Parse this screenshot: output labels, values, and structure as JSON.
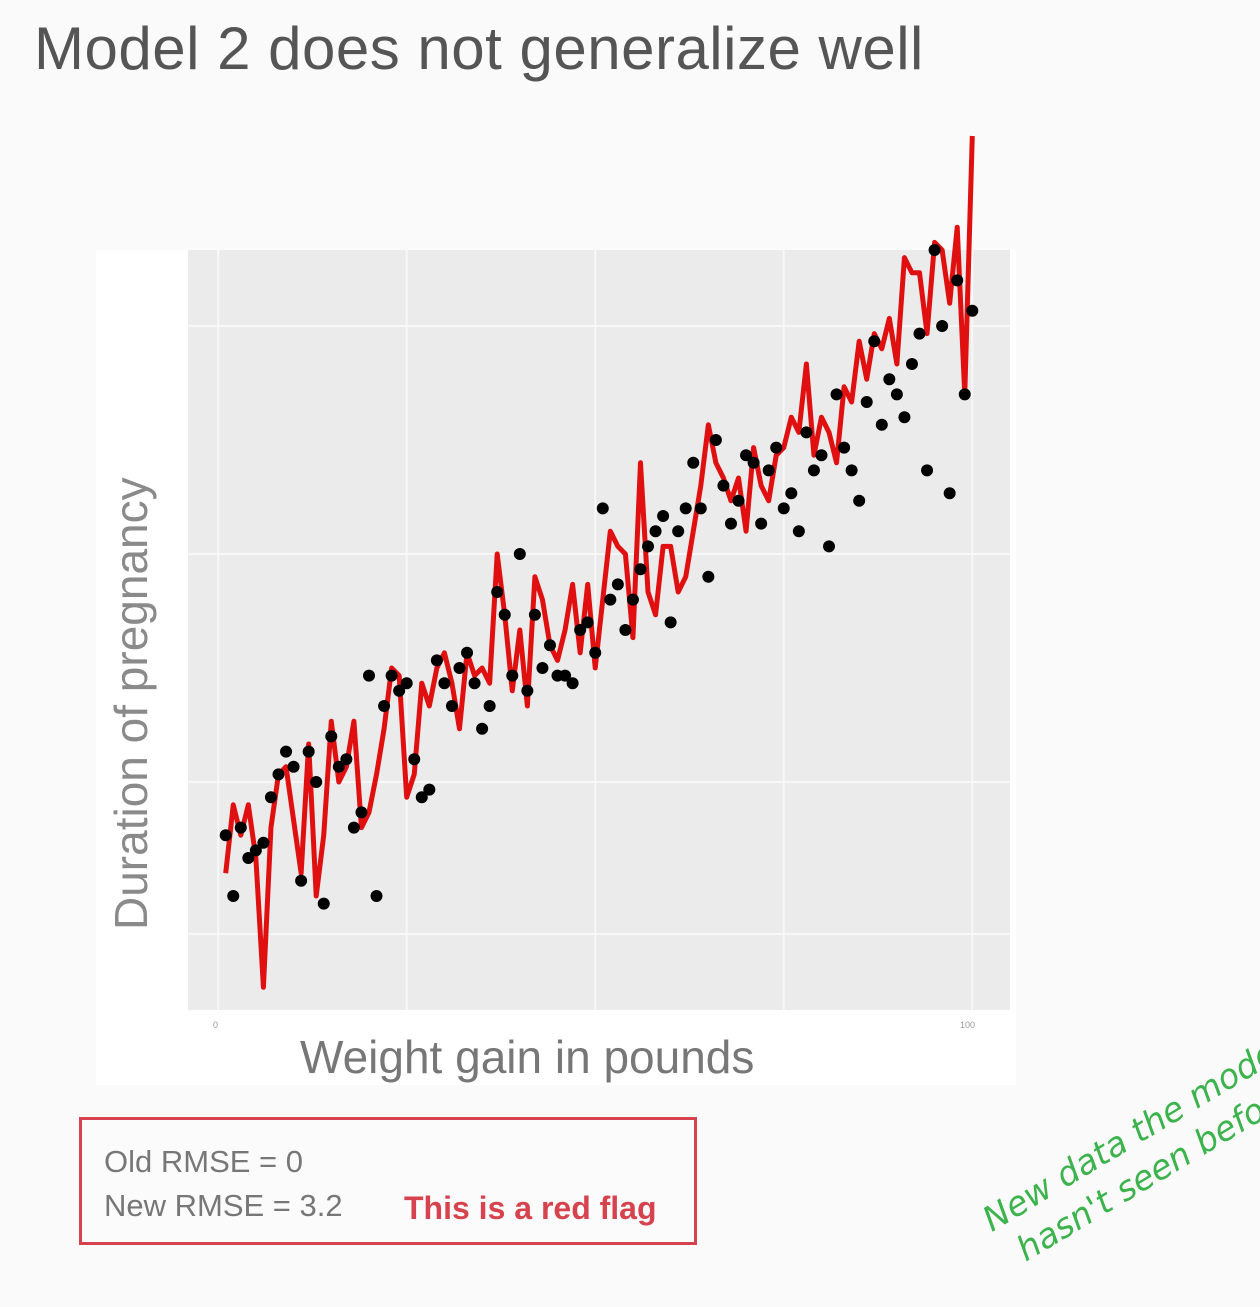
{
  "title": "Model 2 does not generalize well",
  "rmse": {
    "old": "Old RMSE = 0",
    "new": "New RMSE = 3.2",
    "flag": "This is a red flag"
  },
  "annotation": "New data the model\nhasn't seen before",
  "colors": {
    "model_line": "#e01010",
    "points": "#000000",
    "panel": "#ebebeb",
    "flag": "#d6434f",
    "annotation": "#3db34d"
  },
  "chart_data": {
    "type": "scatter",
    "xlabel": "Weight gain in pounds",
    "ylabel": "Duration of pregnancy",
    "x_ticks": [
      "0",
      "100"
    ],
    "xlim": [
      -4,
      105
    ],
    "ylim": [
      0,
      100
    ],
    "grid": true,
    "legend": "none",
    "series": [
      {
        "kind": "points",
        "x": [
          1,
          2,
          3,
          4,
          5,
          6,
          7,
          8,
          9,
          10,
          11,
          12,
          13,
          14,
          15,
          16,
          17,
          18,
          19,
          20,
          21,
          22,
          23,
          24,
          25,
          26,
          27,
          28,
          29,
          30,
          31,
          32,
          33,
          34,
          35,
          36,
          37,
          38,
          39,
          40,
          41,
          42,
          43,
          44,
          45,
          46,
          47,
          48,
          49,
          50,
          51,
          52,
          53,
          54,
          55,
          56,
          57,
          58,
          59,
          60,
          61,
          62,
          63,
          64,
          65,
          66,
          67,
          68,
          69,
          70,
          71,
          72,
          73,
          74,
          75,
          76,
          77,
          78,
          79,
          80,
          81,
          82,
          83,
          84,
          85,
          86,
          87,
          88,
          89,
          90,
          91,
          92,
          93,
          94,
          95,
          96,
          97,
          98,
          99,
          100
        ],
        "y": [
          23,
          15,
          24,
          20,
          21,
          22,
          28,
          31,
          34,
          32,
          17,
          34,
          30,
          14,
          36,
          32,
          33,
          24,
          26,
          44,
          15,
          40,
          44,
          42,
          43,
          33,
          28,
          29,
          46,
          43,
          40,
          45,
          47,
          43,
          37,
          40,
          55,
          52,
          44,
          60,
          42,
          52,
          45,
          48,
          44,
          44,
          43,
          50,
          51,
          47,
          66,
          54,
          56,
          50,
          54,
          58,
          61,
          63,
          65,
          51,
          63,
          66,
          72,
          66,
          57,
          75,
          69,
          64,
          67,
          73,
          72,
          64,
          71,
          74,
          66,
          68,
          63,
          76,
          71,
          73,
          61,
          81,
          74,
          71,
          67,
          80,
          88,
          77,
          83,
          81,
          78,
          85,
          89,
          71,
          100,
          90,
          68,
          96,
          81,
          92
        ],
        "color": "#000000"
      },
      {
        "kind": "line",
        "x": [
          1,
          2,
          3,
          4,
          5,
          6,
          7,
          8,
          9,
          10,
          11,
          12,
          13,
          14,
          15,
          16,
          17,
          18,
          19,
          20,
          21,
          22,
          23,
          24,
          25,
          26,
          27,
          28,
          29,
          30,
          31,
          32,
          33,
          34,
          35,
          36,
          37,
          38,
          39,
          40,
          41,
          42,
          43,
          44,
          45,
          46,
          47,
          48,
          49,
          50,
          51,
          52,
          53,
          54,
          55,
          56,
          57,
          58,
          59,
          60,
          61,
          62,
          63,
          64,
          65,
          66,
          67,
          68,
          69,
          70,
          71,
          72,
          73,
          74,
          75,
          76,
          77,
          78,
          79,
          80,
          81,
          82,
          83,
          84,
          85,
          86,
          87,
          88,
          89,
          90,
          91,
          92,
          93,
          94,
          95,
          96,
          97,
          98,
          99,
          100
        ],
        "y": [
          18,
          27,
          23,
          27,
          20,
          3,
          24,
          31,
          32,
          25,
          18,
          35,
          15,
          23,
          38,
          30,
          32,
          38,
          24,
          26,
          31,
          37,
          45,
          44,
          28,
          31,
          43,
          40,
          45,
          47,
          43,
          37,
          47,
          44,
          45,
          43,
          60,
          52,
          42,
          50,
          40,
          57,
          54,
          48,
          46,
          50,
          56,
          47,
          56,
          45,
          54,
          63,
          61,
          60,
          49,
          72,
          55,
          52,
          61,
          61,
          55,
          57,
          63,
          69,
          77,
          72,
          70,
          67,
          70,
          63,
          74,
          69,
          67,
          73,
          74,
          78,
          76,
          85,
          73,
          78,
          76,
          72,
          82,
          80,
          88,
          83,
          89,
          87,
          91,
          85,
          99,
          97,
          97,
          89,
          101,
          100,
          93,
          103,
          81,
          115
        ],
        "color": "#e01010"
      }
    ]
  }
}
